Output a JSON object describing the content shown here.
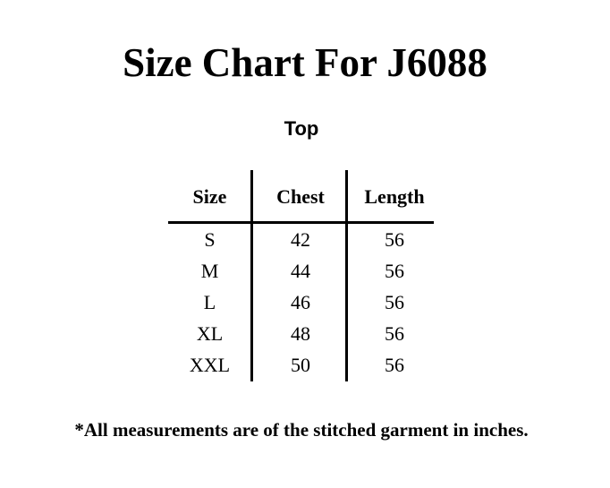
{
  "title": "Size Chart For J6088",
  "section": "Top",
  "table": {
    "headers": [
      "Size",
      "Chest",
      "Length"
    ],
    "rows": [
      [
        "S",
        "42",
        "56"
      ],
      [
        "M",
        "44",
        "56"
      ],
      [
        "L",
        "46",
        "56"
      ],
      [
        "XL",
        "48",
        "56"
      ],
      [
        "XXL",
        "50",
        "56"
      ]
    ]
  },
  "note": "*All measurements are of the stitched garment in inches."
}
